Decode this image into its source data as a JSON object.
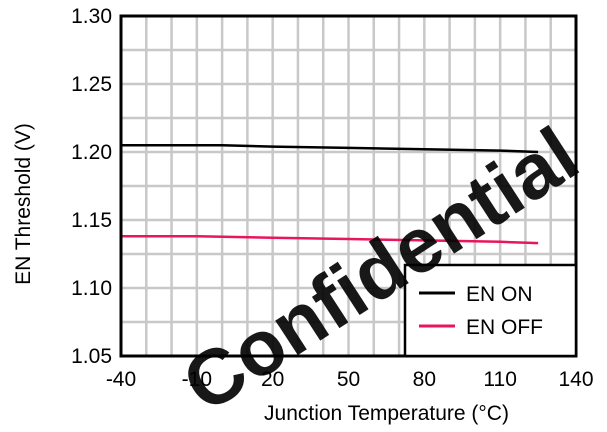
{
  "chart_data": {
    "type": "line",
    "title": "",
    "xlabel": "Junction Temperature (°C)",
    "ylabel": "EN Threshold (V)",
    "xlim": [
      -40,
      140
    ],
    "ylim": [
      1.05,
      1.3
    ],
    "x_ticks": [
      -40,
      -10,
      20,
      50,
      80,
      110,
      140
    ],
    "x_tick_labels": [
      "-40",
      "-10",
      "20",
      "50",
      "80",
      "110",
      "140"
    ],
    "y_ticks": [
      1.05,
      1.1,
      1.15,
      1.2,
      1.25,
      1.3
    ],
    "y_tick_labels": [
      "1.05",
      "1.10",
      "1.15",
      "1.20",
      "1.25",
      "1.30"
    ],
    "x_minor_step": 10,
    "y_minor_step": 0.025,
    "grid": true,
    "legend_position": "bottom-right",
    "series": [
      {
        "name": "EN ON",
        "color": "#000000",
        "x": [
          -40,
          -10,
          0,
          20,
          50,
          80,
          110,
          125
        ],
        "y": [
          1.205,
          1.205,
          1.205,
          1.204,
          1.203,
          1.202,
          1.201,
          1.2
        ]
      },
      {
        "name": "EN OFF",
        "color": "#e8175d",
        "x": [
          -40,
          -20,
          -10,
          20,
          50,
          80,
          110,
          125
        ],
        "y": [
          1.138,
          1.138,
          1.138,
          1.137,
          1.136,
          1.135,
          1.134,
          1.133
        ]
      }
    ]
  },
  "watermark": {
    "text": "Confidential",
    "color": "#e8000b",
    "icon": "watermark"
  }
}
